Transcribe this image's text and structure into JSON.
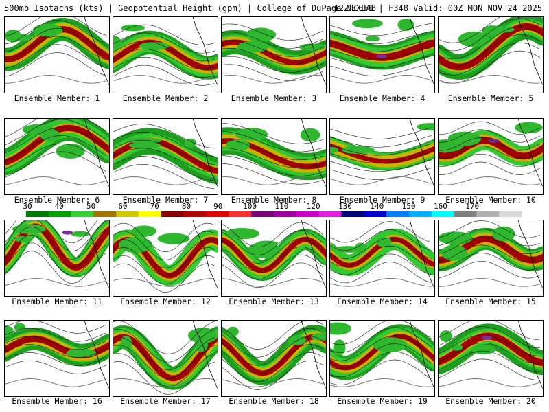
{
  "header": {
    "left_title": "500mb Isotachs (kts) | Geopotential Height (gpm) | College of DuPage NEXLAB",
    "right_title": "12Z GEFS | F348 Valid: 00Z MON NOV 24 2025"
  },
  "colorbar": {
    "ticks": [
      "30",
      "40",
      "50",
      "60",
      "70",
      "80",
      "90",
      "100",
      "110",
      "120",
      "130",
      "140",
      "150",
      "160",
      "170"
    ],
    "colors": [
      "#007a00",
      "#00a000",
      "#32d232",
      "#a07800",
      "#d2c800",
      "#ffff00",
      "#8b0000",
      "#b00000",
      "#e00000",
      "#ff3030",
      "#7a007a",
      "#a000a0",
      "#c800c8",
      "#e020e0",
      "#00007a",
      "#0000d0",
      "#0080ff",
      "#00b0ff",
      "#00ffff",
      "#808080",
      "#b0b0b0",
      "#d8d8d8"
    ]
  },
  "members": [
    {
      "label": "Ensemble Member: 1"
    },
    {
      "label": "Ensemble Member: 2"
    },
    {
      "label": "Ensemble Member: 3"
    },
    {
      "label": "Ensemble Member: 4"
    },
    {
      "label": "Ensemble Member: 5"
    },
    {
      "label": "Ensemble Member: 6"
    },
    {
      "label": "Ensemble Member: 7"
    },
    {
      "label": "Ensemble Member: 8"
    },
    {
      "label": "Ensemble Member: 9"
    },
    {
      "label": "Ensemble Member: 10"
    },
    {
      "label": "Ensemble Member: 11"
    },
    {
      "label": "Ensemble Member: 12"
    },
    {
      "label": "Ensemble Member: 13"
    },
    {
      "label": "Ensemble Member: 14"
    },
    {
      "label": "Ensemble Member: 15"
    },
    {
      "label": "Ensemble Member: 16"
    },
    {
      "label": "Ensemble Member: 17"
    },
    {
      "label": "Ensemble Member: 18"
    },
    {
      "label": "Ensemble Member: 19"
    },
    {
      "label": "Ensemble Member: 20"
    }
  ]
}
